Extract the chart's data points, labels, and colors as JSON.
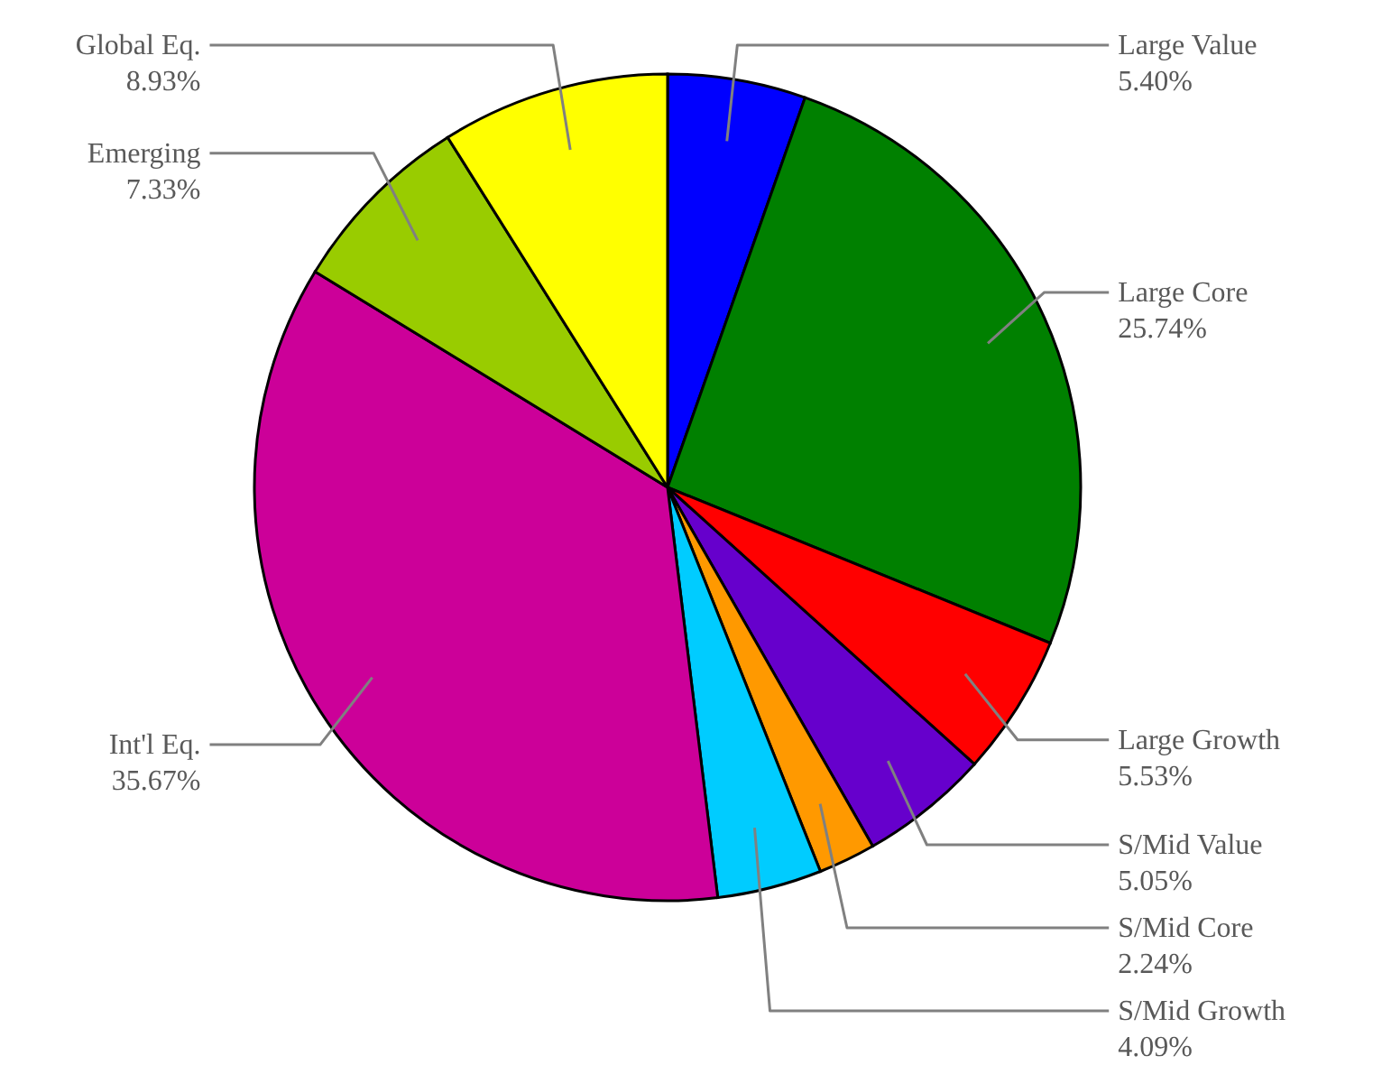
{
  "chart_data": {
    "type": "pie",
    "categories": [
      "Large Value",
      "Large Core",
      "Large Growth",
      "S/Mid Value",
      "S/Mid Core",
      "S/Mid Growth",
      "Int'l Eq.",
      "Emerging",
      "Global Eq."
    ],
    "values": [
      5.4,
      25.74,
      5.53,
      5.05,
      2.24,
      4.09,
      35.67,
      7.33,
      8.93
    ],
    "colors": [
      "#0000ff",
      "#008000",
      "#ff0000",
      "#6600cc",
      "#ff9900",
      "#00ccff",
      "#cc0099",
      "#99cc00",
      "#ffff00"
    ],
    "value_labels": [
      "5.40%",
      "25.74%",
      "5.53%",
      "5.05%",
      "2.24%",
      "4.09%",
      "35.67%",
      "7.33%",
      "8.93%"
    ]
  }
}
